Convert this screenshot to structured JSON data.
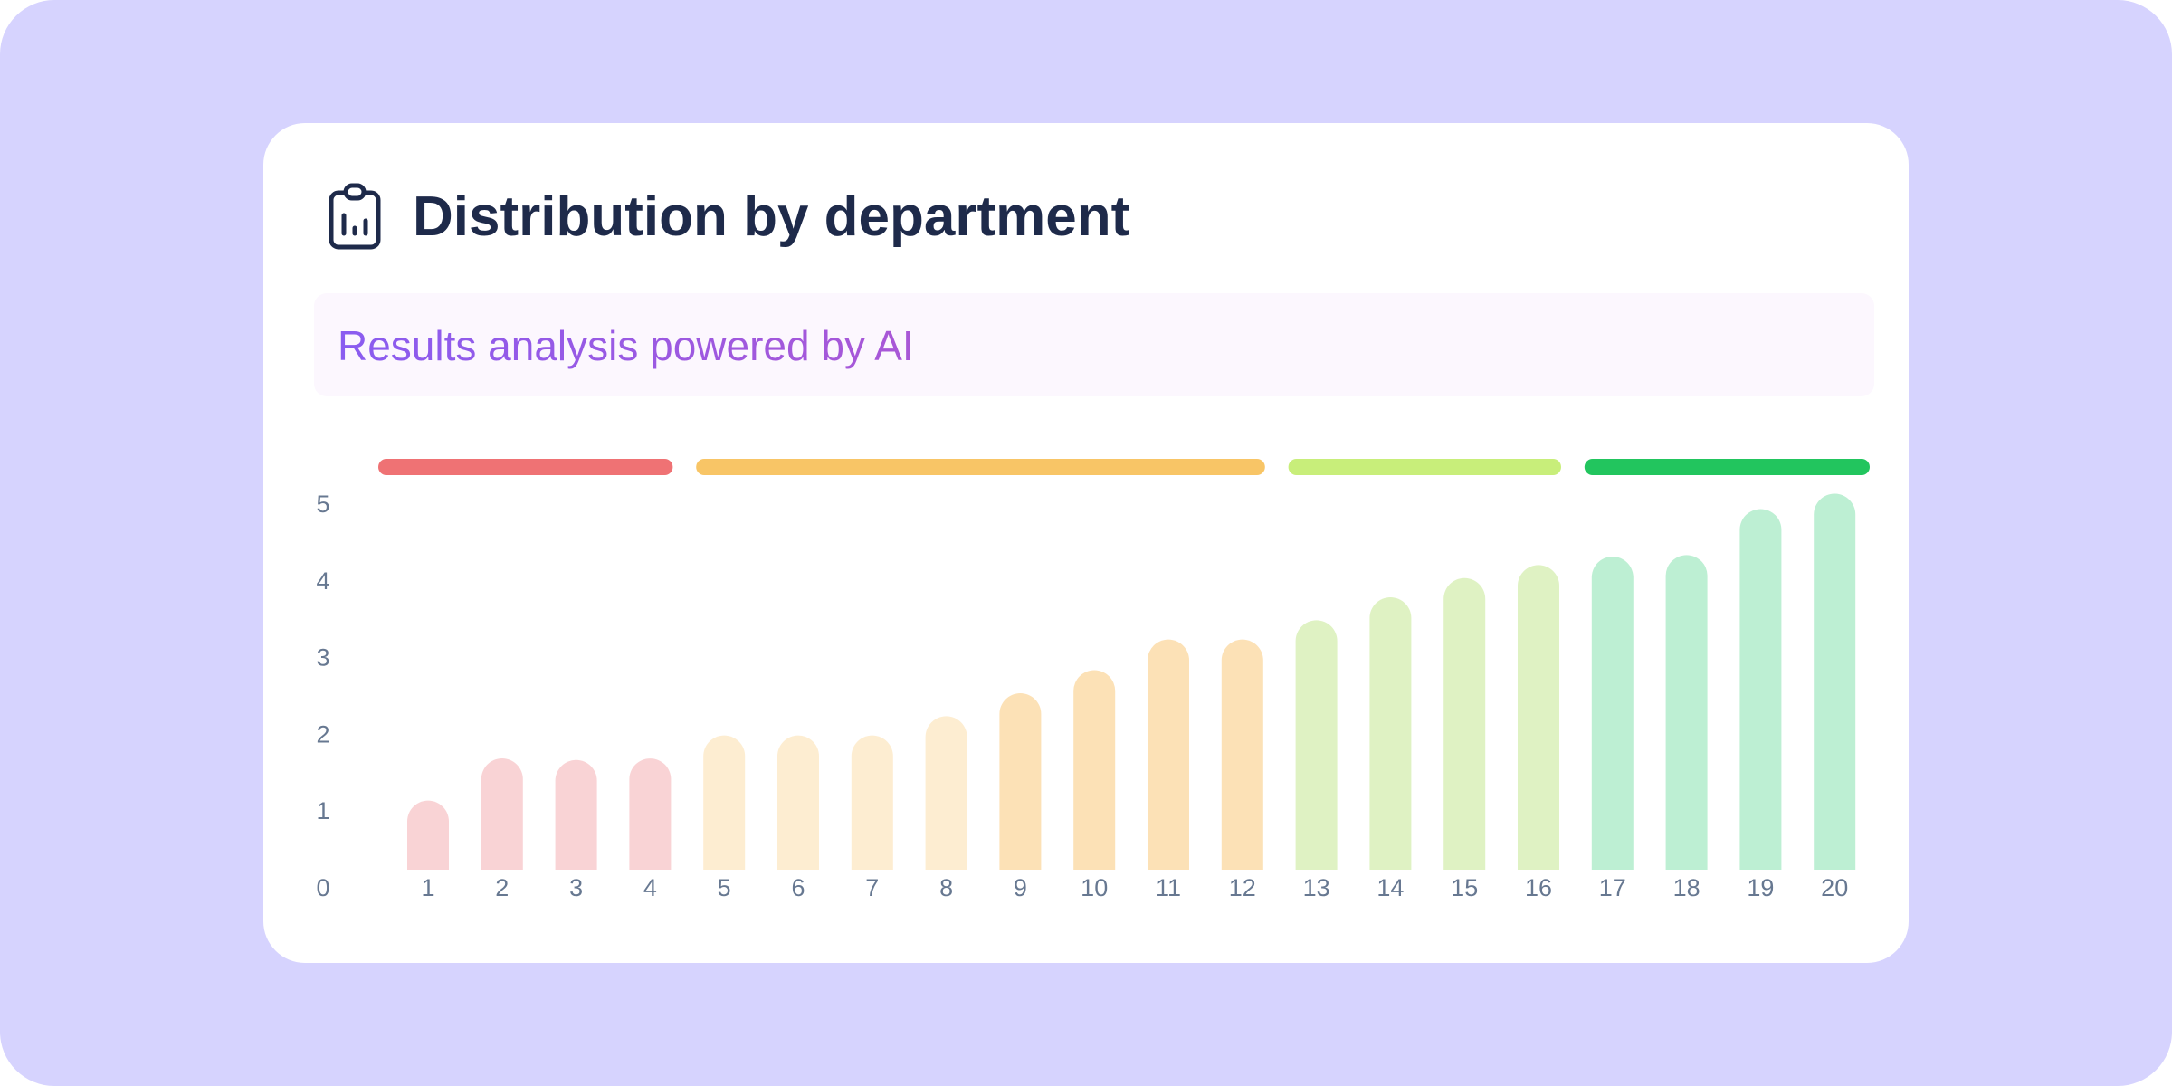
{
  "header": {
    "title": "Distribution by department",
    "icon": "clipboard-chart-icon"
  },
  "ai_banner": {
    "text": "Results analysis powered by AI"
  },
  "colors": {
    "background": "#D6D3FE",
    "title": "#1E2A4A",
    "axis_text": "#677891"
  },
  "chart_data": {
    "type": "bar",
    "title": "Distribution by department",
    "xlabel": "",
    "ylabel": "",
    "ylim": [
      0,
      5
    ],
    "y_ticks": [
      "0",
      "1",
      "2",
      "3",
      "4",
      "5"
    ],
    "categories": [
      "1",
      "2",
      "3",
      "4",
      "5",
      "6",
      "7",
      "8",
      "9",
      "10",
      "11",
      "12",
      "13",
      "14",
      "15",
      "16",
      "17",
      "18",
      "19",
      "20"
    ],
    "values": [
      0.9,
      1.45,
      1.43,
      1.45,
      1.75,
      1.75,
      1.75,
      2.0,
      2.3,
      2.6,
      3.0,
      3.0,
      3.25,
      3.55,
      3.8,
      3.97,
      4.08,
      4.1,
      4.7,
      4.9
    ],
    "bar_colors": [
      "#F9D3D5",
      "#F9D3D5",
      "#F9D3D5",
      "#F9D3D5",
      "#FDEDD1",
      "#FDEDD1",
      "#FDEDD1",
      "#FDEDD1",
      "#FCE1B6",
      "#FCE1B6",
      "#FCE1B6",
      "#FCE1B6",
      "#DFF2C3",
      "#DFF2C3",
      "#DFF2C3",
      "#DFF2C3",
      "#BDEFD3",
      "#BDEFD3",
      "#BDEFD3",
      "#BDEFD3"
    ],
    "bands": [
      {
        "from": 1,
        "to": 4,
        "color": "#EF7274"
      },
      {
        "from": 5,
        "to": 12,
        "color": "#F8C566"
      },
      {
        "from": 13,
        "to": 16,
        "color": "#C8EE7A"
      },
      {
        "from": 17,
        "to": 20,
        "color": "#22C55E"
      }
    ],
    "grid": false
  }
}
